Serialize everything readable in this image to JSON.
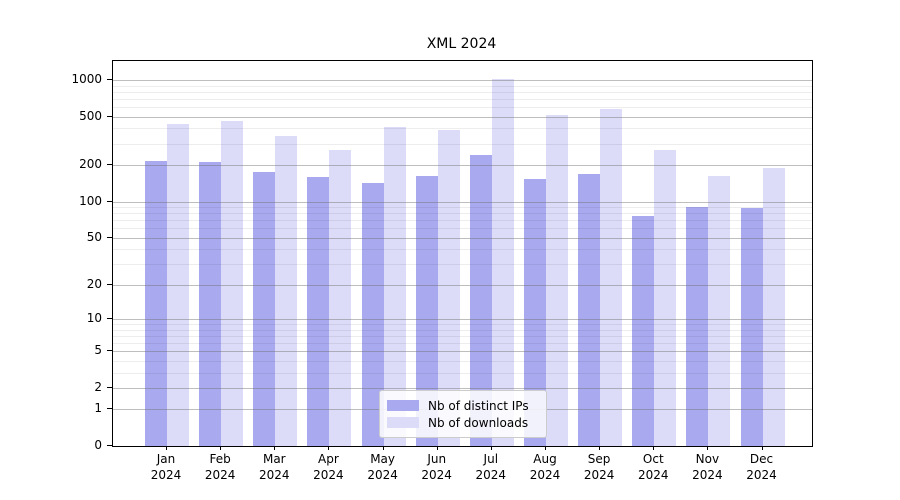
{
  "chart_data": {
    "type": "bar",
    "title": "XML 2024",
    "scale": "log(value+1)",
    "categories": [
      "Jan 2024",
      "Feb 2024",
      "Mar 2024",
      "Apr 2024",
      "May 2024",
      "Jun 2024",
      "Jul 2024",
      "Aug 2024",
      "Sep 2024",
      "Oct 2024",
      "Nov 2024",
      "Dec 2024"
    ],
    "series": [
      {
        "name": "Nb of distinct IPs",
        "color": "#a9a9f0",
        "values": [
          218,
          210,
          175,
          158,
          143,
          161,
          242,
          153,
          170,
          76,
          90,
          88
        ]
      },
      {
        "name": "Nb of downloads",
        "color": "#dcdcf8",
        "values": [
          437,
          465,
          350,
          268,
          412,
          388,
          1010,
          520,
          580,
          268,
          162,
          190
        ]
      }
    ],
    "y_ticks": [
      0,
      1,
      2,
      5,
      10,
      20,
      50,
      100,
      200,
      500,
      1000
    ],
    "y_minor_ticks": [
      3,
      4,
      6,
      7,
      8,
      9,
      30,
      40,
      60,
      70,
      80,
      90,
      300,
      400,
      600,
      700,
      800,
      900
    ],
    "ylim": [
      0,
      1150
    ],
    "grid": true,
    "legend_position": "lower center",
    "colors": {
      "major_grid": "#b0b0b0",
      "minor_grid": "#e8e8e8",
      "spine": "#000000",
      "background": "#ffffff"
    }
  }
}
